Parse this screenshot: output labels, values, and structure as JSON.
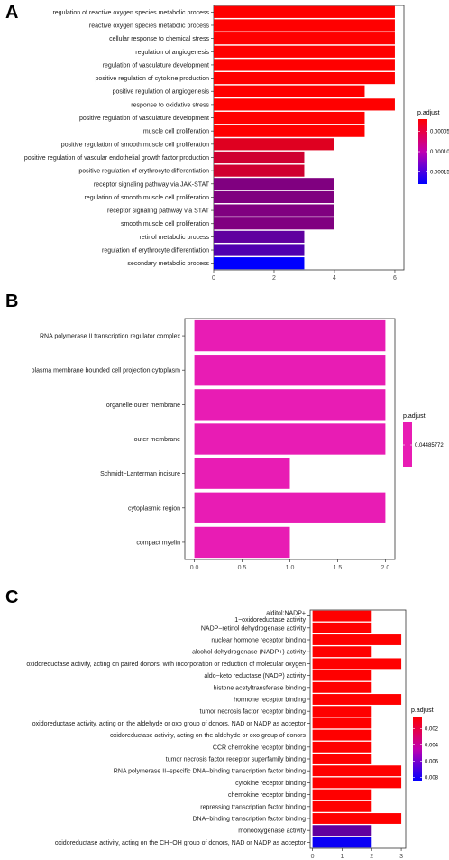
{
  "chart_data": [
    {
      "panel": "A",
      "type": "bar",
      "orientation": "horizontal",
      "categories": [
        "regulation of reactive oxygen species metabolic process",
        "reactive oxygen species metabolic process",
        "cellular response to chemical stress",
        "regulation of angiogenesis",
        "regulation of vasculature development",
        "positive regulation of cytokine production",
        "positive regulation of angiogenesis",
        "response to oxidative stress",
        "positive regulation of vasculature development",
        "muscle cell proliferation",
        "positive regulation of smooth muscle cell proliferation",
        "positive regulation of vascular endothelial growth factor production",
        "positive regulation of erythrocyte differentiation",
        "receptor signaling pathway via JAK-STAT",
        "regulation of smooth muscle cell proliferation",
        "receptor signaling pathway via STAT",
        "smooth muscle cell proliferation",
        "retinol metabolic process",
        "regulation of erythrocyte differentiation",
        "secondary metabolic process"
      ],
      "values": [
        6,
        6,
        6,
        6,
        6,
        6,
        5,
        6,
        5,
        5,
        4,
        3,
        3,
        4,
        4,
        4,
        4,
        3,
        3,
        3
      ],
      "p_adjust": [
        2e-05,
        2e-05,
        2e-05,
        2e-05,
        2e-05,
        2e-05,
        2e-05,
        2e-05,
        2e-05,
        2e-05,
        4e-05,
        5e-05,
        5e-05,
        0.0001,
        0.0001,
        0.0001,
        0.0001,
        0.00012,
        0.00013,
        0.00018
      ],
      "xlim": [
        0,
        6.3
      ],
      "xticks": [
        "0",
        "2",
        "4",
        "6"
      ],
      "xtick_values": [
        0,
        2,
        4,
        6
      ],
      "legend": {
        "title": "p.adjust",
        "labels": [
          "0.00005",
          "0.00010",
          "0.00015"
        ],
        "label_values": [
          5e-05,
          0.0001,
          0.00015
        ],
        "range": [
          2e-05,
          0.00018
        ],
        "low_color": "#FF0000",
        "high_color": "#0000FF",
        "position": "right"
      }
    },
    {
      "panel": "B",
      "type": "bar",
      "orientation": "horizontal",
      "categories": [
        "RNA polymerase II transcription regulator complex",
        "plasma membrane bounded cell projection cytoplasm",
        "organelle outer membrane",
        "outer membrane",
        "Schmidt−Lanterman incisure",
        "cytoplasmic region",
        "compact myelin"
      ],
      "values": [
        2,
        2,
        2,
        2,
        1,
        2,
        1
      ],
      "p_adjust": [
        0.04485772,
        0.04485772,
        0.04485772,
        0.04485772,
        0.04485772,
        0.04485772,
        0.04485772
      ],
      "xlim": [
        -0.1,
        2.1
      ],
      "xticks": [
        "0.0",
        "0.5",
        "1.0",
        "1.5",
        "2.0"
      ],
      "xtick_values": [
        0,
        0.5,
        1,
        1.5,
        2
      ],
      "bar_color": "#E81CB4",
      "legend": {
        "title": "p.adjust",
        "labels": [
          "0.04485772"
        ],
        "label_values": [
          0.04485772
        ],
        "range": [
          0.0448,
          0.0449
        ],
        "color": "#E81CB4",
        "position": "right"
      }
    },
    {
      "panel": "C",
      "type": "bar",
      "orientation": "horizontal",
      "categories": [
        "alditol:NADP+\n1−oxidoreductase activity",
        "NADP−retinol dehydrogenase activity",
        "nuclear hormone receptor binding",
        "alcohol dehydrogenase (NADP+) activity",
        "oxidoreductase activity, acting on paired donors, with incorporation or reduction of molecular oxygen",
        "aldo−keto reductase (NADP) activity",
        "histone acetyltransferase binding",
        "hormone receptor binding",
        "tumor necrosis factor receptor binding",
        "oxidoreductase activity, acting on the aldehyde or oxo group of donors, NAD or NADP as acceptor",
        "oxidoreductase activity, acting on the aldehyde or oxo group of donors",
        "CCR chemokine receptor binding",
        "tumor necrosis factor receptor superfamily binding",
        "RNA polymerase II−specific DNA−binding transcription factor binding",
        "cytokine receptor binding",
        "chemokine receptor binding",
        "repressing transcription factor binding",
        "DNA−binding transcription factor binding",
        "monooxygenase activity",
        "oxidoreductase activity, acting on the CH−OH group of donors, NAD or NADP as acceptor"
      ],
      "values": [
        2,
        2,
        3,
        2,
        3,
        2,
        2,
        3,
        2,
        2,
        2,
        2,
        2,
        3,
        3,
        2,
        2,
        3,
        2,
        2
      ],
      "p_adjust": [
        0.0005,
        0.0005,
        0.0005,
        0.0005,
        0.0005,
        0.0005,
        0.0005,
        0.0005,
        0.0005,
        0.0005,
        0.0005,
        0.0005,
        0.0005,
        0.0005,
        0.0005,
        0.0005,
        0.0005,
        0.0005,
        0.0055,
        0.0082
      ],
      "xlim": [
        -0.08,
        3.15
      ],
      "xticks": [
        "0",
        "1",
        "2",
        "3"
      ],
      "xtick_values": [
        0,
        1,
        2,
        3
      ],
      "legend": {
        "title": "p.adjust",
        "labels": [
          "0.002",
          "0.004",
          "0.006",
          "0.008"
        ],
        "label_values": [
          0.002,
          0.004,
          0.006,
          0.008
        ],
        "range": [
          0.0005,
          0.0085
        ],
        "low_color": "#FF0000",
        "high_color": "#0000FF",
        "position": "right"
      }
    }
  ]
}
